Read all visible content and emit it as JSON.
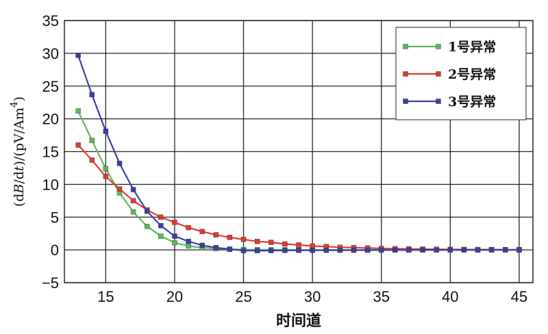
{
  "chart_data": {
    "type": "line",
    "xlabel": "时间道",
    "ylabel_parts": {
      "pre": "(d",
      "b": "B",
      "mid": "/d",
      "t": "t",
      "post": ")/(pV/Am",
      "sup": "4",
      "end": ")"
    },
    "xlim": [
      12,
      46
    ],
    "ylim": [
      -5,
      35
    ],
    "xticks": [
      15,
      20,
      25,
      30,
      35,
      40,
      45
    ],
    "yticks": [
      -5,
      0,
      5,
      10,
      15,
      20,
      25,
      30,
      35
    ],
    "grid": true,
    "legend_position": "top-right",
    "x": [
      13,
      14,
      15,
      16,
      17,
      18,
      19,
      20,
      21,
      22,
      23,
      24,
      25,
      26,
      27,
      28,
      29,
      30,
      31,
      32,
      33,
      34,
      35,
      36,
      37,
      38,
      39,
      40,
      41,
      42,
      43,
      44,
      45
    ],
    "series": [
      {
        "name": "1号异常",
        "color": "#5cb85c",
        "values": [
          21.2,
          16.7,
          12.4,
          8.7,
          5.8,
          3.6,
          2.1,
          1.1,
          0.6,
          0.35,
          0.2,
          0.1,
          0.05,
          0.03,
          0.02,
          0.01,
          0,
          0,
          0,
          0,
          0,
          0,
          0,
          0,
          0,
          0,
          0,
          0,
          0,
          0,
          0,
          0,
          0
        ]
      },
      {
        "name": "2号异常",
        "color": "#e03a2f",
        "values": [
          16.0,
          13.7,
          11.2,
          9.3,
          7.5,
          6.1,
          5.0,
          4.2,
          3.4,
          2.8,
          2.3,
          1.9,
          1.6,
          1.3,
          1.15,
          0.9,
          0.75,
          0.6,
          0.5,
          0.4,
          0.35,
          0.28,
          0.22,
          0.18,
          0.15,
          0.12,
          0.1,
          0.08,
          0.07,
          0.06,
          0.05,
          0.04,
          0.03
        ]
      },
      {
        "name": "3号异常",
        "color": "#3a3fa0",
        "values": [
          29.7,
          23.7,
          18.1,
          13.2,
          9.2,
          5.9,
          3.7,
          2.1,
          1.3,
          0.7,
          0.35,
          0.12,
          -0.1,
          -0.12,
          -0.1,
          -0.08,
          -0.07,
          -0.06,
          -0.05,
          -0.05,
          -0.04,
          -0.04,
          -0.03,
          -0.03,
          -0.03,
          -0.02,
          -0.02,
          -0.02,
          -0.02,
          -0.02,
          -0.01,
          -0.01,
          -0.01
        ]
      }
    ]
  }
}
